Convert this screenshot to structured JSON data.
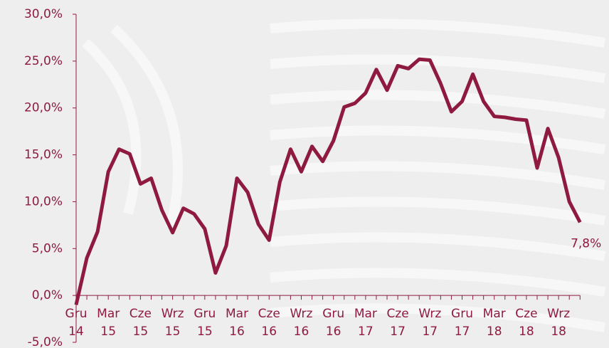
{
  "chart_data": {
    "type": "line",
    "categories": [
      "Gru\n14",
      null,
      null,
      "Mar\n15",
      null,
      null,
      "Cze\n15",
      null,
      null,
      "Wrz\n15",
      null,
      null,
      "Gru\n15",
      null,
      null,
      "Mar\n16",
      null,
      null,
      "Cze\n16",
      null,
      null,
      "Wrz\n16",
      null,
      null,
      "Gru\n16",
      null,
      null,
      "Mar\n17",
      null,
      null,
      "Cze\n17",
      null,
      null,
      "Wrz\n17",
      null,
      null,
      "Gru\n17",
      null,
      null,
      "Mar\n18",
      null,
      null,
      "Cze\n18",
      null,
      null,
      "Wrz\n18",
      null,
      null
    ],
    "values": [
      -1.0,
      4.0,
      6.8,
      13.2,
      15.6,
      15.1,
      11.9,
      12.5,
      9.1,
      6.7,
      9.3,
      8.7,
      7.1,
      2.4,
      5.3,
      12.5,
      11.0,
      7.6,
      5.9,
      12.1,
      15.6,
      13.2,
      15.9,
      14.3,
      16.5,
      20.1,
      20.5,
      21.6,
      24.1,
      21.9,
      24.5,
      24.2,
      25.2,
      25.1,
      22.6,
      19.6,
      20.7,
      23.6,
      20.7,
      19.1,
      19.0,
      18.8,
      18.7,
      13.6,
      17.8,
      14.7,
      10.0,
      7.8
    ],
    "value_labels": [
      null,
      null,
      null,
      null,
      null,
      null,
      null,
      null,
      null,
      null,
      null,
      null,
      null,
      null,
      null,
      null,
      null,
      null,
      null,
      null,
      null,
      null,
      null,
      null,
      null,
      null,
      null,
      null,
      null,
      null,
      null,
      null,
      null,
      null,
      null,
      null,
      null,
      null,
      null,
      null,
      null,
      null,
      null,
      null,
      null,
      null,
      null,
      "7,8%"
    ],
    "color": "#8e1b3f",
    "ylim": [
      -5,
      30
    ],
    "yticks": [
      {
        "value": -5,
        "label": "-5,0%"
      },
      {
        "value": 0,
        "label": "0,0%"
      },
      {
        "value": 5,
        "label": "5,0%"
      },
      {
        "value": 10,
        "label": "10,0%"
      },
      {
        "value": 15,
        "label": "15,0%"
      },
      {
        "value": 20,
        "label": "20,0%"
      },
      {
        "value": 25,
        "label": "25,0%"
      },
      {
        "value": 30,
        "label": "30,0%"
      }
    ]
  }
}
